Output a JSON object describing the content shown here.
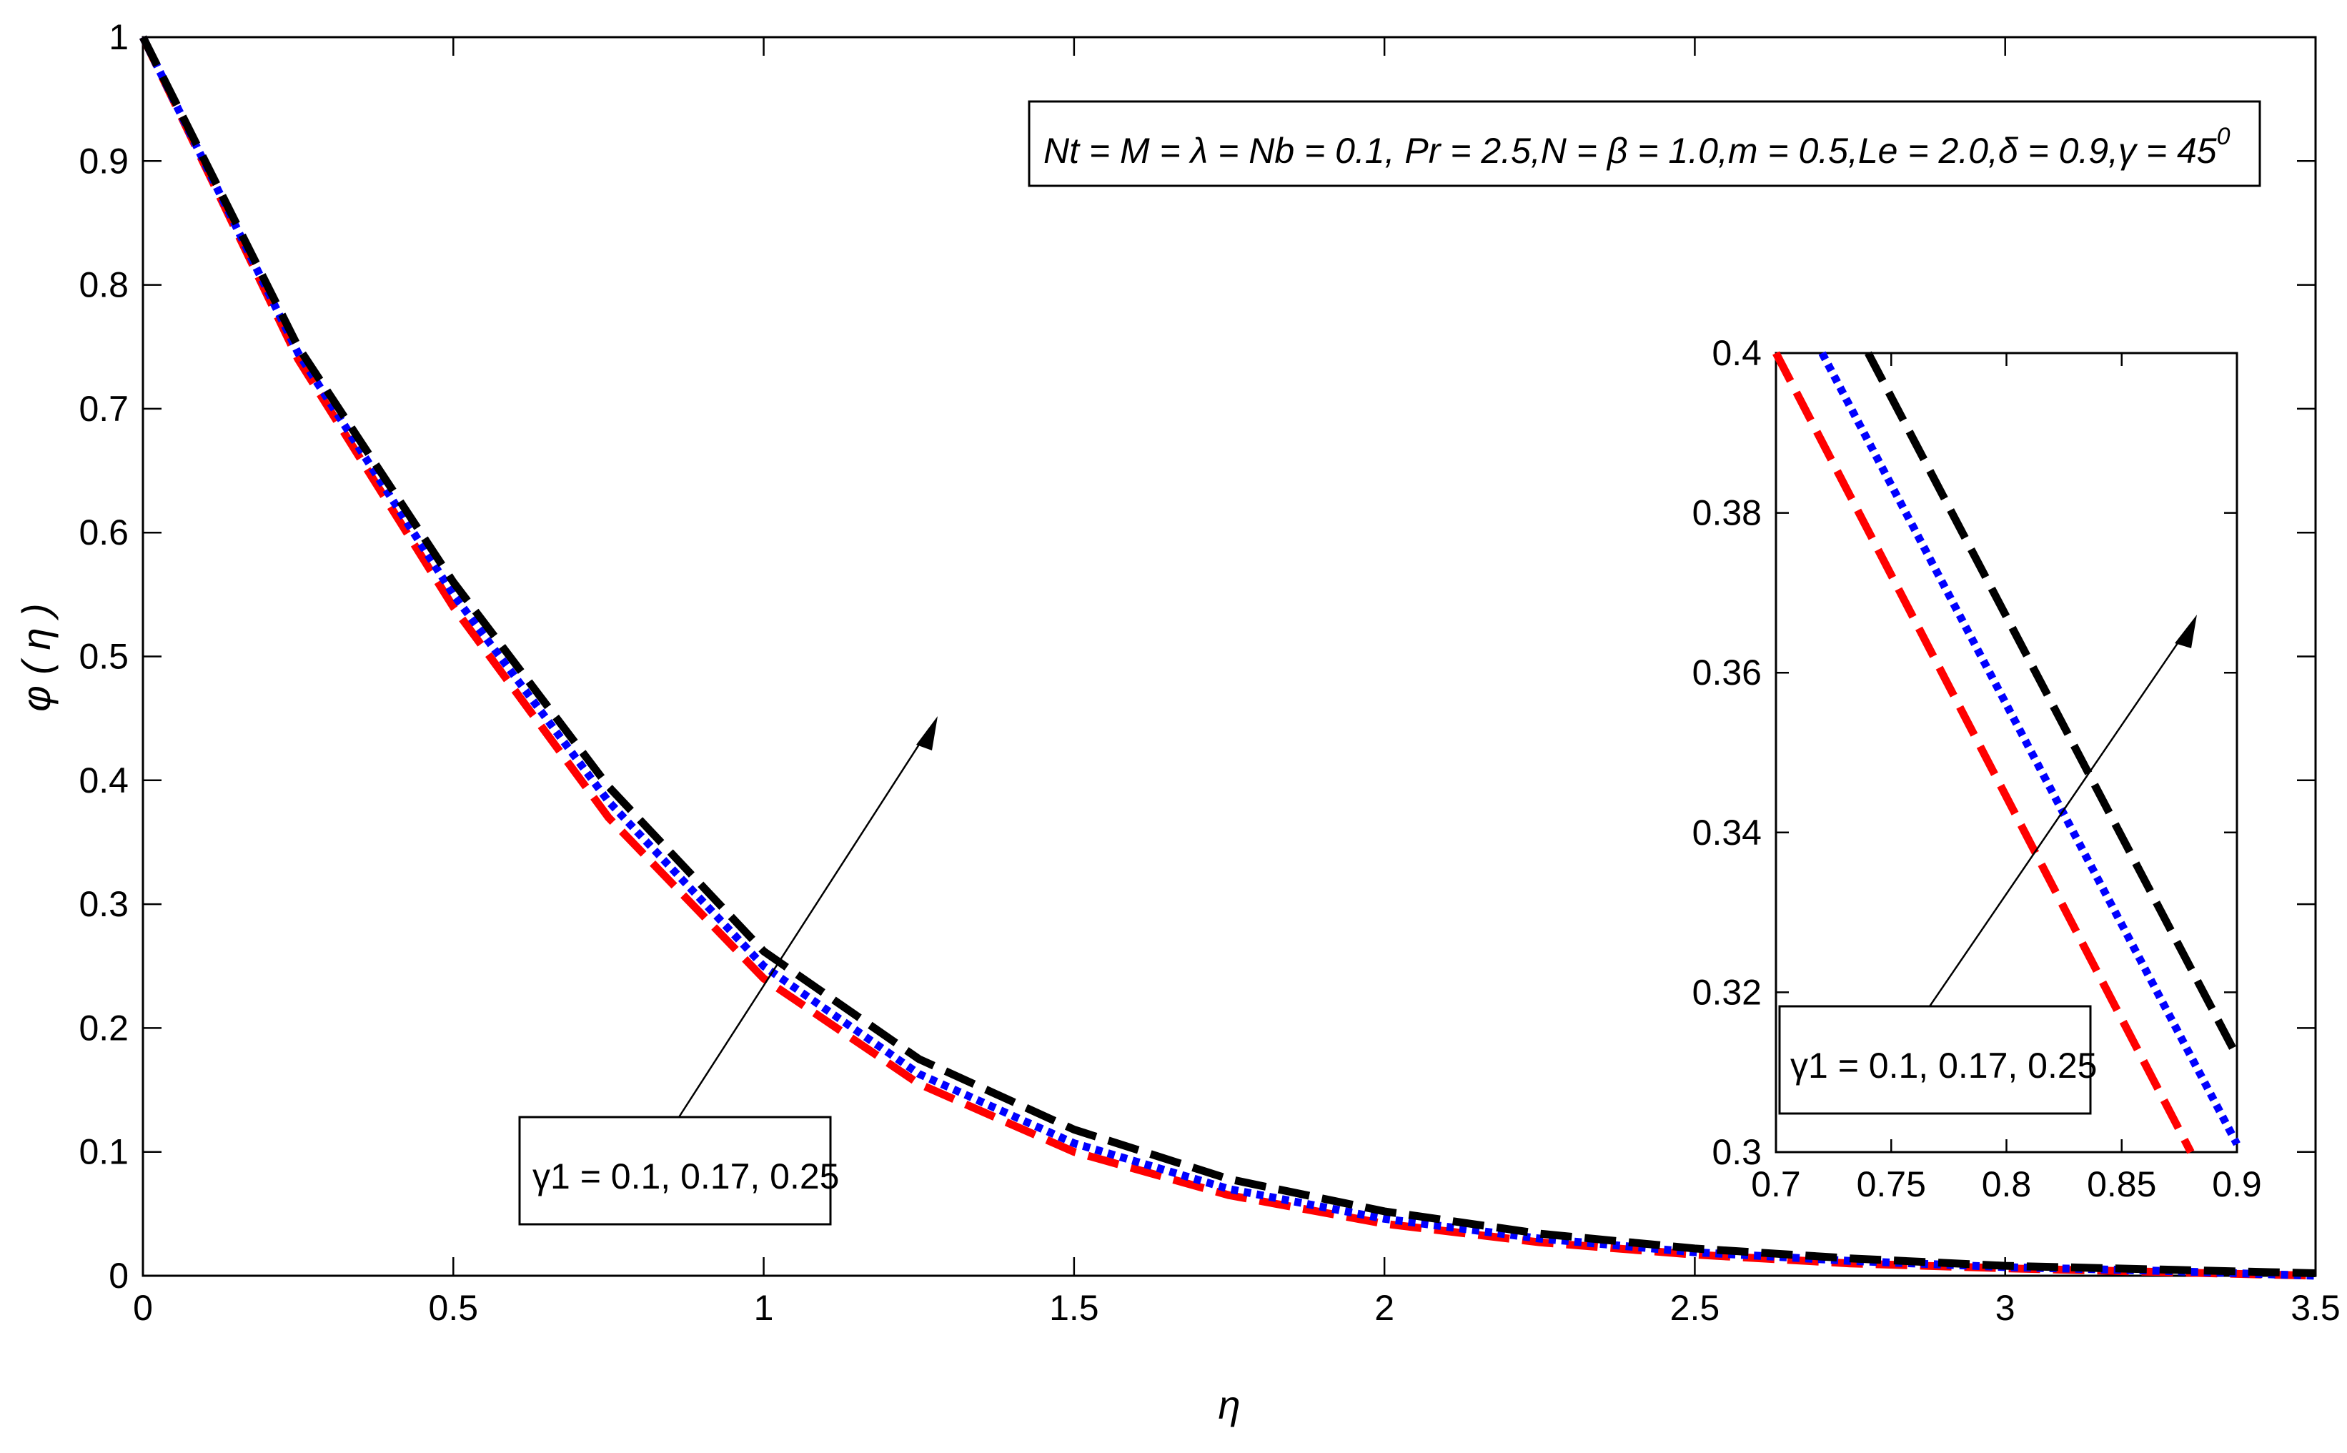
{
  "chart_data": [
    {
      "type": "line",
      "xlabel": "η",
      "ylabel": "φ ( η )",
      "xlim": [
        0,
        3.5
      ],
      "ylim": [
        0,
        1
      ],
      "xticks": [
        "0",
        "0.5",
        "1",
        "1.5",
        "2",
        "2.5",
        "3",
        "3.5"
      ],
      "yticks": [
        "0",
        "0.1",
        "0.2",
        "0.3",
        "0.4",
        "0.5",
        "0.6",
        "0.7",
        "0.8",
        "0.9",
        "1"
      ],
      "grid": false,
      "parameters_text": "Nt = M = λ = Nb = 0.1, Pr = 2.5,N = β = 1.0,m = 0.5,Le = 2.0,δ = 0.9,γ = 45",
      "parameters_superscript": "0",
      "annotation": "γ1 = 0.1, 0.17, 0.25",
      "series": [
        {
          "color": "#ff0000",
          "style": "dashed",
          "x": [
            0,
            0.25,
            0.5,
            0.75,
            1.0,
            1.25,
            1.5,
            1.75,
            2.0,
            2.25,
            2.5,
            2.75,
            3.0,
            3.25,
            3.5
          ],
          "values": [
            1.0,
            0.74,
            0.54,
            0.37,
            0.24,
            0.155,
            0.1,
            0.065,
            0.042,
            0.027,
            0.017,
            0.01,
            0.006,
            0.003,
            0.0
          ]
        },
        {
          "color": "#0000ff",
          "style": "dotted",
          "x": [
            0,
            0.25,
            0.5,
            0.75,
            1.0,
            1.25,
            1.5,
            1.75,
            2.0,
            2.25,
            2.5,
            2.75,
            3.0,
            3.25,
            3.5
          ],
          "values": [
            1.0,
            0.745,
            0.55,
            0.383,
            0.25,
            0.163,
            0.107,
            0.07,
            0.046,
            0.03,
            0.019,
            0.012,
            0.007,
            0.004,
            0.0
          ]
        },
        {
          "color": "#000000",
          "style": "dashed",
          "x": [
            0,
            0.25,
            0.5,
            0.75,
            1.0,
            1.25,
            1.5,
            1.75,
            2.0,
            2.25,
            2.5,
            2.75,
            3.0,
            3.25,
            3.5
          ],
          "values": [
            1.0,
            0.75,
            0.56,
            0.395,
            0.262,
            0.175,
            0.118,
            0.078,
            0.052,
            0.034,
            0.022,
            0.014,
            0.008,
            0.005,
            0.002
          ]
        }
      ]
    },
    {
      "type": "line",
      "role": "inset",
      "xlim": [
        0.7,
        0.9
      ],
      "ylim": [
        0.3,
        0.4
      ],
      "xticks": [
        "0.7",
        "0.75",
        "0.8",
        "0.85",
        "0.9"
      ],
      "yticks": [
        "0.3",
        "0.32",
        "0.34",
        "0.36",
        "0.38",
        "0.4"
      ],
      "grid": false,
      "annotation": "γ1 = 0.1, 0.17, 0.25",
      "series": [
        {
          "color": "#ff0000",
          "style": "dashed",
          "x": [
            0.7,
            0.88
          ],
          "values": [
            0.4,
            0.3
          ]
        },
        {
          "color": "#0000ff",
          "style": "dotted",
          "x": [
            0.72,
            0.9
          ],
          "values": [
            0.4,
            0.301
          ]
        },
        {
          "color": "#000000",
          "style": "dashed",
          "x": [
            0.74,
            0.9
          ],
          "values": [
            0.4,
            0.312
          ]
        }
      ]
    }
  ]
}
